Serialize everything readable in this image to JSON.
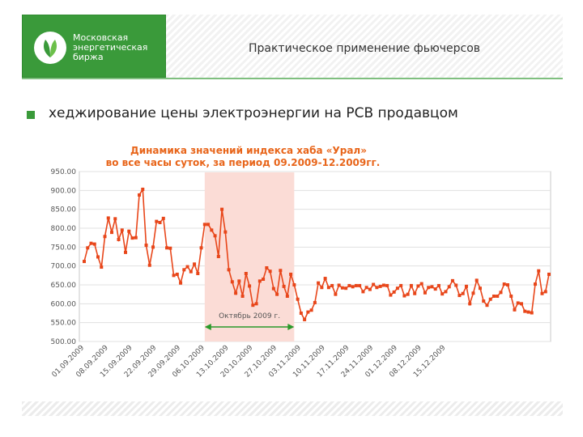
{
  "logo": {
    "line1": "Московская",
    "line2": "энергетическая",
    "line3": "биржа"
  },
  "header": {
    "title": "Практическое применение фьючерсов"
  },
  "bullet": {
    "text": "хеджирование цены электроэнергии на РСВ продавцом"
  },
  "colors": {
    "brand_green": "#3a9a3a",
    "series": "#e8461a",
    "highlight": "#fbdcd6",
    "arrow": "#2a9a2a"
  },
  "chart_data": {
    "type": "line",
    "title_line1": "Динамика значений индекса хаба «Урал»",
    "title_line2": "во все часы суток, за период 09.2009-12.2009гг.",
    "ylim": [
      500,
      950
    ],
    "y_ticks": [
      "950.00",
      "900.00",
      "850.00",
      "800.00",
      "750.00",
      "700.00",
      "650.00",
      "600.00",
      "550.00",
      "500.00"
    ],
    "x_ticks": [
      "01.09.2009",
      "08.09.2009",
      "15.09.2009",
      "22.09.2009",
      "29.09.2009",
      "06.10.2009",
      "13.10.2009",
      "20.10.2009",
      "27.10.2009",
      "03.11.2009",
      "10.11.2009",
      "17.11.2009",
      "24.11.2009",
      "01.12.2009",
      "08.12.2009",
      "15.12.2009"
    ],
    "highlight": {
      "from_day": 35,
      "to_day": 61
    },
    "annotation": "Октябрь 2009 г.",
    "series": [
      {
        "values": [
          712,
          748,
          760,
          758,
          724,
          697,
          778,
          827,
          789,
          825,
          770,
          795,
          736,
          792,
          774,
          775,
          888,
          903,
          755,
          702,
          750,
          818,
          815,
          826,
          748,
          747,
          675,
          678,
          655,
          690,
          698,
          685,
          705,
          680,
          748,
          810,
          810,
          795,
          780,
          725,
          850,
          790,
          690,
          658,
          628,
          660,
          620,
          680,
          647,
          596,
          600,
          660,
          665,
          695,
          686,
          640,
          625,
          688,
          646,
          620,
          678,
          650,
          612,
          575,
          558,
          578,
          583,
          603,
          655,
          643,
          667,
          643,
          648,
          625,
          649,
          642,
          641,
          648,
          645,
          648,
          648,
          632,
          643,
          638,
          651,
          643,
          646,
          649,
          648,
          623,
          631,
          641,
          648,
          621,
          625,
          648,
          627,
          647,
          653,
          629,
          643,
          645,
          639,
          648,
          626,
          632,
          645,
          661,
          649,
          622,
          627,
          646,
          600,
          628,
          662,
          641,
          607,
          596,
          612,
          620,
          620,
          630,
          652,
          650,
          620,
          584,
          602,
          600,
          580,
          578,
          576,
          652,
          687,
          627,
          632,
          678
        ]
      }
    ]
  }
}
